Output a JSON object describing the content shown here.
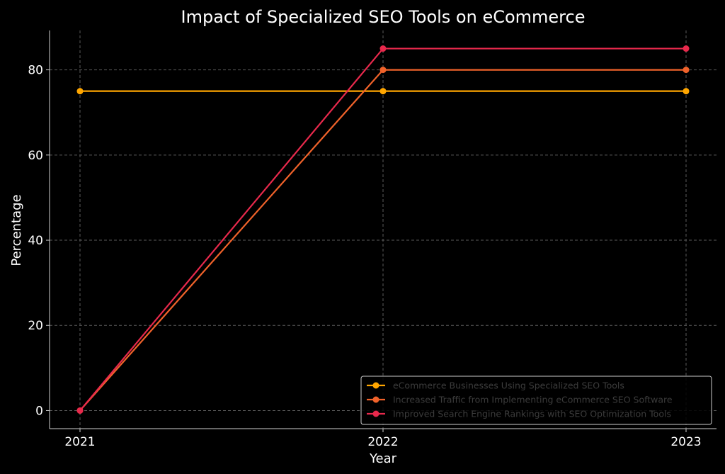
{
  "chart_data": {
    "type": "line",
    "title": "Impact of Specialized SEO Tools on eCommerce",
    "xlabel": "Year",
    "ylabel": "Percentage",
    "x": [
      "2021",
      "2022",
      "2023"
    ],
    "ylim": [
      -4.25,
      89.25
    ],
    "yticks": [
      0,
      20,
      40,
      60,
      80
    ],
    "grid": true,
    "legend_position": "lower-right",
    "background": "#000000",
    "series": [
      {
        "name": "eCommerce Businesses Using Specialized SEO Tools",
        "values": [
          75,
          75,
          75
        ],
        "color": "#ffa600"
      },
      {
        "name": "Increased Traffic from Implementing eCommerce SEO Software",
        "values": [
          0,
          80,
          80
        ],
        "color": "#f0622a"
      },
      {
        "name": "Improved Search Engine Rankings with SEO Optimization Tools",
        "values": [
          0,
          85,
          85
        ],
        "color": "#e8294c"
      }
    ]
  }
}
